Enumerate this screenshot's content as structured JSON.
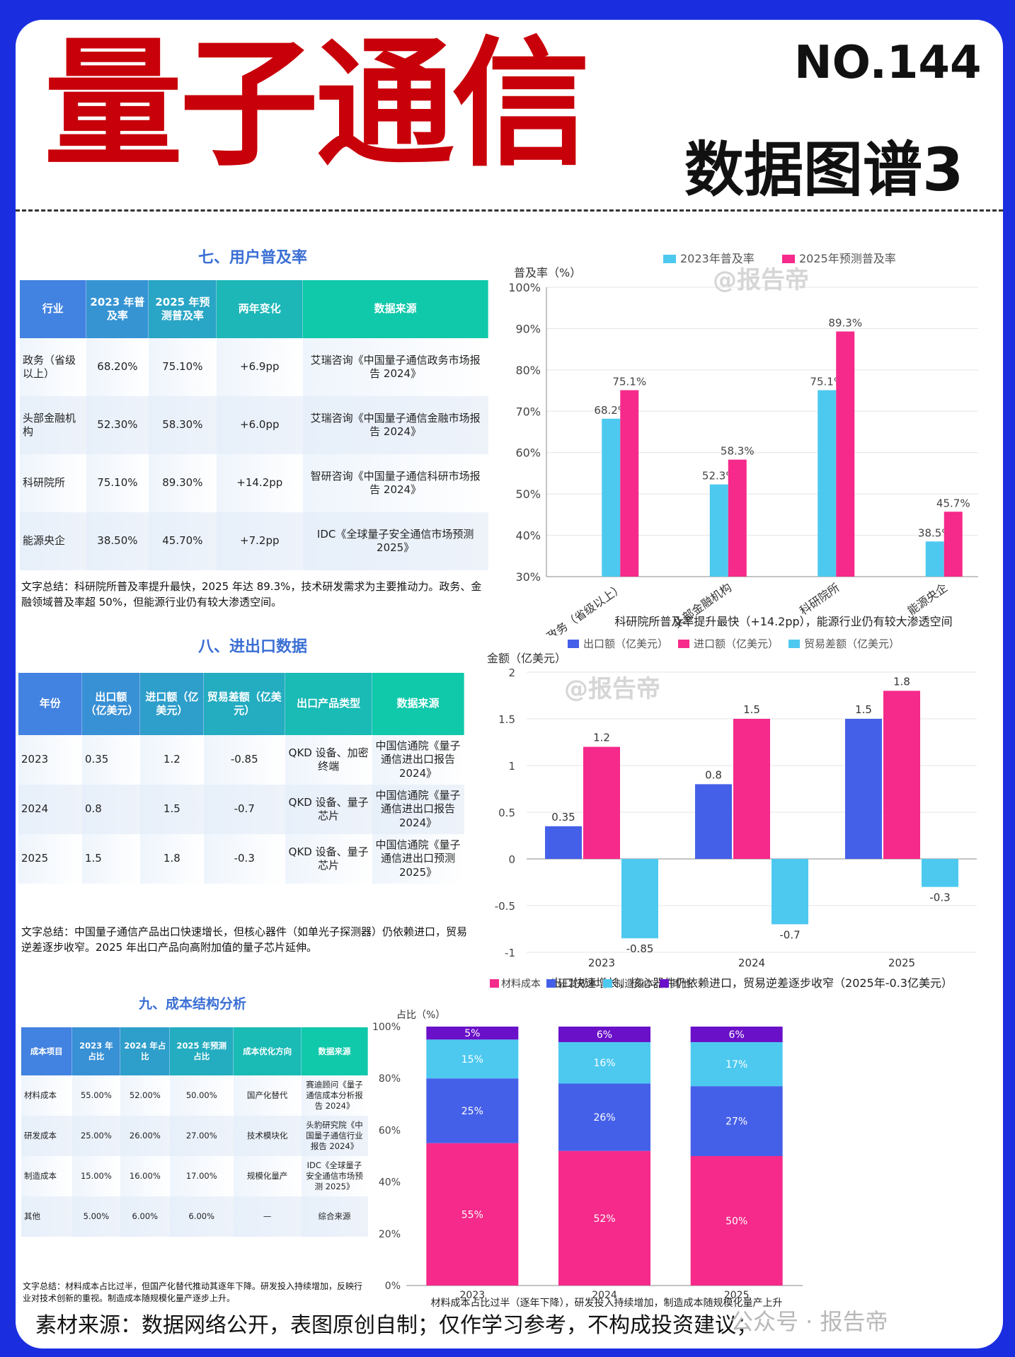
{
  "header": {
    "title": "量子通信",
    "number": "NO.144",
    "subtitle": "数据图谱3"
  },
  "watermark": "@报告帝",
  "footer": {
    "text": "素材来源：数据网络公开，表图原创自制；仅作学习参考，不构成投资建议；",
    "brand": "公众号 · 报告帝"
  },
  "sections": [
    {
      "title": "七、用户普及率",
      "headers": [
        "行业",
        "2023 年普及率",
        "2025 年预测普及率",
        "两年变化",
        "数据来源"
      ],
      "rows": [
        [
          "政务（省级以上）",
          "68.20%",
          "75.10%",
          "+6.9pp",
          "艾瑞咨询《中国量子通信政务市场报告 2024》"
        ],
        [
          "头部金融机构",
          "52.30%",
          "58.30%",
          "+6.0pp",
          "艾瑞咨询《中国量子通信金融市场报告 2024》"
        ],
        [
          "科研院所",
          "75.10%",
          "89.30%",
          "+14.2pp",
          "智研咨询《中国量子通信科研市场报告 2024》"
        ],
        [
          "能源央企",
          "38.50%",
          "45.70%",
          "+7.2pp",
          "IDC《全球量子安全通信市场预测 2025》"
        ]
      ],
      "summary": "文字总结：科研院所普及率提升最快，2025 年达 89.3%，技术研发需求为主要推动力。政务、金融领域普及率超 50%，但能源行业仍有较大渗透空间。"
    },
    {
      "title": "八、进出口数据",
      "headers": [
        "年份",
        "出口额（亿美元）",
        "进口额（亿美元）",
        "贸易差额（亿美元）",
        "出口产品类型",
        "数据来源"
      ],
      "rows": [
        [
          "2023",
          "0.35",
          "1.2",
          "-0.85",
          "QKD 设备、加密终端",
          "中国信通院《量子通信进出口报告 2024》"
        ],
        [
          "2024",
          "0.8",
          "1.5",
          "-0.7",
          "QKD 设备、量子芯片",
          "中国信通院《量子通信进出口报告 2024》"
        ],
        [
          "2025",
          "1.5",
          "1.8",
          "-0.3",
          "QKD 设备、量子芯片",
          "中国信通院《量子通信进出口预测 2025》"
        ]
      ],
      "summary": "文字总结：中国量子通信产品出口快速增长，但核心器件（如单光子探测器）仍依赖进口，贸易逆差逐步收窄。2025 年出口产品向高附加值的量子芯片延伸。"
    },
    {
      "title": "九、成本结构分析",
      "headers": [
        "成本项目",
        "2023 年占比",
        "2024 年占比",
        "2025 年预测占比",
        "成本优化方向",
        "数据来源"
      ],
      "rows": [
        [
          "材料成本",
          "55.00%",
          "52.00%",
          "50.00%",
          "国产化替代",
          "赛迪顾问《量子通信成本分析报告 2024》"
        ],
        [
          "研发成本",
          "25.00%",
          "26.00%",
          "27.00%",
          "技术模块化",
          "头豹研究院《中国量子通信行业报告 2024》"
        ],
        [
          "制造成本",
          "15.00%",
          "16.00%",
          "17.00%",
          "规模化量产",
          "IDC《全球量子安全通信市场预测 2025》"
        ],
        [
          "其他",
          "5.00%",
          "6.00%",
          "6.00%",
          "—",
          "综合来源"
        ]
      ],
      "summary": "文字总结：材料成本占比过半，但国产化替代推动其逐年下降。研发投入持续增加，反映行业对技术创新的重视。制造成本随规模化量产逐步上升。"
    }
  ],
  "colors": {
    "cyan": "#4dc9f0",
    "pink": "#f52a8a",
    "blue": "#4560e8",
    "purple": "#6a10c8",
    "title_red": "#c8000a",
    "section_blue": "#3b6fd4"
  },
  "chart_data": [
    {
      "type": "bar",
      "categories": [
        "政务（省级以上）",
        "头部金融机构",
        "科研院所",
        "能源央企"
      ],
      "series": [
        {
          "name": "2023年普及率",
          "values": [
            68.2,
            52.3,
            75.1,
            38.5
          ],
          "labels": [
            "68.2%",
            "52.3%",
            "75.1%",
            "38.5%"
          ]
        },
        {
          "name": "2025年预测普及率",
          "values": [
            75.1,
            58.3,
            89.3,
            45.7
          ],
          "labels": [
            "75.1%",
            "58.3%",
            "89.3%",
            "45.7%"
          ]
        }
      ],
      "ylabel": "普及率（%）",
      "ylim": [
        30,
        100
      ],
      "ticks": [
        "30%",
        "40%",
        "50%",
        "60%",
        "70%",
        "80%",
        "90%",
        "100%"
      ],
      "caption": "科研院所普及率提升最快（+14.2pp），能源行业仍有较大渗透空间",
      "legend_position": "top",
      "grid": true
    },
    {
      "type": "bar",
      "categories": [
        "2023",
        "2024",
        "2025"
      ],
      "series": [
        {
          "name": "出口额（亿美元）",
          "values": [
            0.35,
            0.8,
            1.5
          ],
          "labels": [
            "0.35",
            "0.8",
            "1.5"
          ]
        },
        {
          "name": "进口额（亿美元）",
          "values": [
            1.2,
            1.5,
            1.8
          ],
          "labels": [
            "1.2",
            "1.5",
            "1.8"
          ]
        },
        {
          "name": "贸易差额（亿美元）",
          "values": [
            -0.85,
            -0.7,
            -0.3
          ],
          "labels": [
            "-0.85",
            "-0.7",
            "-0.3"
          ]
        }
      ],
      "ylabel": "金额（亿美元）",
      "ylim": [
        -1,
        2
      ],
      "ticks": [
        "-1",
        "-0.5",
        "0",
        "0.5",
        "1",
        "1.5",
        "2"
      ],
      "caption": "出口快速增长，核心器件仍依赖进口，贸易逆差逐步收窄（2025年-0.3亿美元）",
      "legend_position": "top",
      "grid": true
    },
    {
      "type": "bar",
      "stacked": true,
      "categories": [
        "2023",
        "2024",
        "2025"
      ],
      "series": [
        {
          "name": "材料成本",
          "values": [
            55,
            52,
            50
          ],
          "labels": [
            "55%",
            "52%",
            "50%"
          ]
        },
        {
          "name": "研发成本",
          "values": [
            25,
            26,
            27
          ],
          "labels": [
            "25%",
            "26%",
            "27%"
          ]
        },
        {
          "name": "制造成本",
          "values": [
            15,
            16,
            17
          ],
          "labels": [
            "15%",
            "16%",
            "17%"
          ]
        },
        {
          "name": "其他",
          "values": [
            5,
            6,
            6
          ],
          "labels": [
            "5%",
            "6%",
            "6%"
          ]
        }
      ],
      "ylabel": "占比（%）",
      "ylim": [
        0,
        100
      ],
      "ticks": [
        "0%",
        "20%",
        "40%",
        "60%",
        "80%",
        "100%"
      ],
      "caption": "材料成本占比过半（逐年下降），研发投入持续增加，制造成本随规模化量产上升",
      "legend_position": "top",
      "grid": false
    }
  ]
}
